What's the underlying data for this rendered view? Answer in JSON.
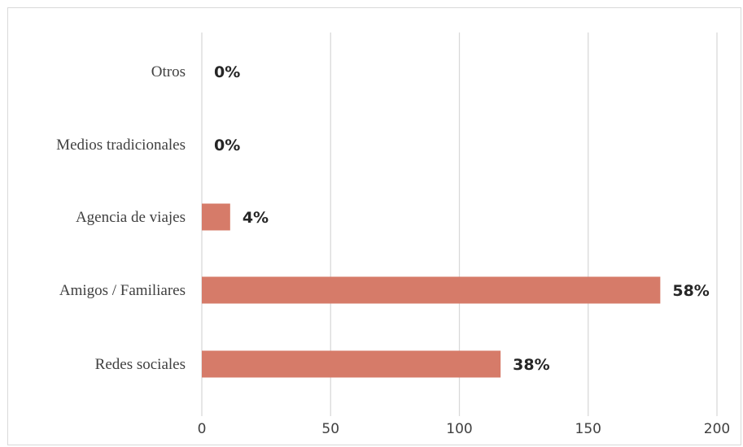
{
  "chart_data": {
    "type": "bar",
    "orientation": "horizontal",
    "categories": [
      "Redes sociales",
      "Amigos / Familiares",
      "Agencia de viajes",
      "Medios tradicionales",
      "Otros"
    ],
    "values": [
      116,
      178,
      11,
      0,
      0
    ],
    "data_labels": [
      "38%",
      "58%",
      "4%",
      "0%",
      "0%"
    ],
    "xlim": [
      0,
      200
    ],
    "xticks": [
      0,
      50,
      100,
      150,
      200
    ],
    "xtick_labels": [
      "0",
      "50",
      "100",
      "150",
      "200"
    ],
    "grid": "vertical",
    "legend": "none",
    "bar_color": "#d67b69",
    "grid_color": "#d9d9d9"
  }
}
